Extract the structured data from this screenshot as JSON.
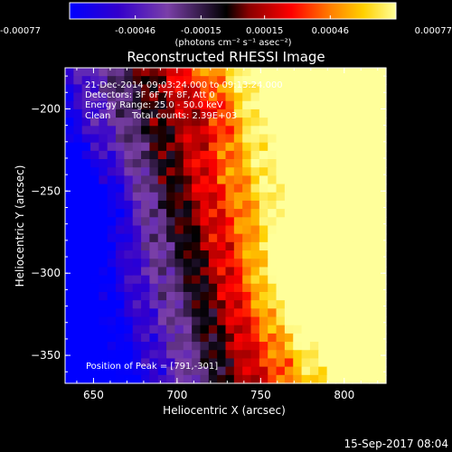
{
  "chart_data": {
    "type": "heatmap",
    "title": "Reconstructed RHESSI Image",
    "xlabel": "Heliocentric X (arcsec)",
    "ylabel": "Heliocentric Y (arcsec)",
    "x_ticks": [
      650,
      700,
      750,
      800
    ],
    "y_ticks": [
      -200,
      -250,
      -300,
      -350
    ],
    "xlim": [
      633,
      825
    ],
    "ylim": [
      -367,
      -175
    ],
    "colorbar": {
      "ticks": [
        "-0.00077",
        "-0.00046",
        "-0.00015",
        "0.00015",
        "0.00046",
        "0.00077"
      ],
      "range": [
        -0.00077,
        0.00077
      ],
      "unit_label": "(photons cm⁻² s⁻¹ asec⁻²)",
      "colormap": [
        "#0000ff",
        "#3300cc",
        "#7a3fa8",
        "#000000",
        "#8b0000",
        "#ff0000",
        "#ff7f00",
        "#ffd000",
        "#ffff9a"
      ]
    },
    "annotations": {
      "time_range": "21-Dec-2014 09:03:24.000 to 09:13:24.000",
      "detectors": "Detectors: 3F 6F 7F 8F, Att 0",
      "energy": "Energy Range: 25.0 - 50.0 keV",
      "method": "Clean",
      "counts": "Total counts: 2.39E+03",
      "peak": "Position of Peak = [791,-301]"
    },
    "peak": {
      "x": 791,
      "y": -301
    },
    "timestamp": "15-Sep-2017 08:04"
  }
}
